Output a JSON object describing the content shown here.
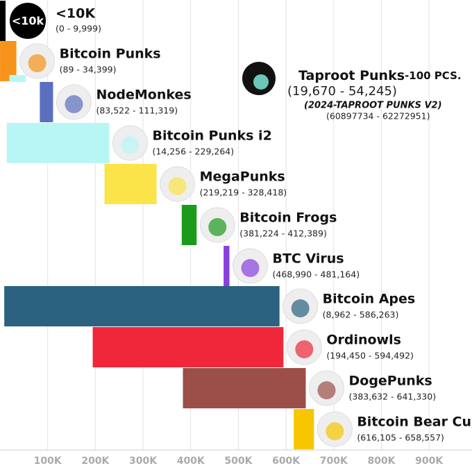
{
  "chart_data": {
    "type": "range-bar",
    "categories": [
      "<10K",
      "Bitcoin Punks",
      "Taproot Punks",
      "NodeMonkes",
      "Bitcoin Punks i2",
      "MegaPunks",
      "Bitcoin Frogs",
      "BTC Virus",
      "Bitcoin Apes",
      "Ordinowls",
      "DogePunks",
      "Bitcoin Bear Cubs"
    ],
    "starts": [
      0,
      89,
      19670,
      83522,
      14256,
      219219,
      381224,
      468990,
      8962,
      194450,
      383632,
      616105
    ],
    "ends": [
      9999,
      34399,
      54245,
      111319,
      229264,
      328418,
      412389,
      481164,
      586263,
      594492,
      641330,
      658557
    ],
    "value_labels": [
      "(0 - 9,999)",
      "(89 - 34,399)",
      "(19,670 - 54,245)",
      "(83,522 - 111,319)",
      "(14,256 - 229,264)",
      "(219,219 - 328,418)",
      "(381,224 - 412,389)",
      "(468,990 - 481,164)",
      "(8,962 - 586,263)",
      "(194,450 - 594,492)",
      "(383,632 - 641,330)",
      "(616,105 - 658,557)"
    ],
    "colors": [
      "#000000",
      "#f7931a",
      "#b8f6f6",
      "#5a6fc0",
      "#b8f6f6",
      "#fbe34a",
      "#1c9a1c",
      "#8a3fe0",
      "#2a6280",
      "#f0263a",
      "#9b4f48",
      "#f7c600"
    ],
    "icon_label": "<10k",
    "annotations": [
      "-100 PCS.",
      "(2024-TAPROOT PUNKS V2)",
      "(60897734 - 62272951)"
    ],
    "xlim": [
      0,
      990000
    ],
    "xticks": [
      {
        "value": 100000,
        "label": "100K"
      },
      {
        "value": 200000,
        "label": "200K"
      },
      {
        "value": 300000,
        "label": "300K"
      },
      {
        "value": 400000,
        "label": "400K"
      },
      {
        "value": 500000,
        "label": "500K"
      },
      {
        "value": 600000,
        "label": "600K"
      },
      {
        "value": 700000,
        "label": "700K"
      },
      {
        "value": 800000,
        "label": "800K"
      },
      {
        "value": 900000,
        "label": "900K"
      }
    ],
    "grid": true
  }
}
